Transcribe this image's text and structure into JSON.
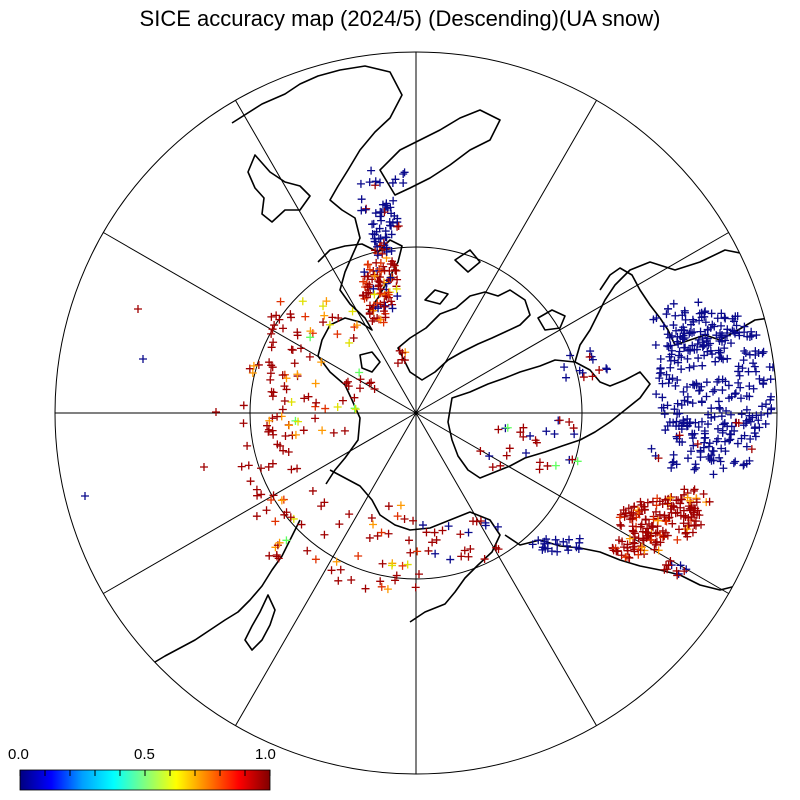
{
  "title": "SICE accuracy map (2024/5) (Descending)(UA snow)",
  "projection": "north-polar-stereographic",
  "colorbar": {
    "min_label": "0.0",
    "mid_label": "0.5",
    "max_label": "1.0",
    "stops": [
      "#000080",
      "#0000ff",
      "#00a0ff",
      "#00ffff",
      "#80ff80",
      "#ffff00",
      "#ff8000",
      "#ff0000",
      "#800000"
    ]
  },
  "marker_colors": {
    "high": "#a00000",
    "upper": "#e03000",
    "mid": "#ff9900",
    "yellow": "#e0e000",
    "green": "#60ff60",
    "low": "#0a0a8c"
  },
  "colors": {
    "background": "#ffffff",
    "lines": "#000000"
  }
}
